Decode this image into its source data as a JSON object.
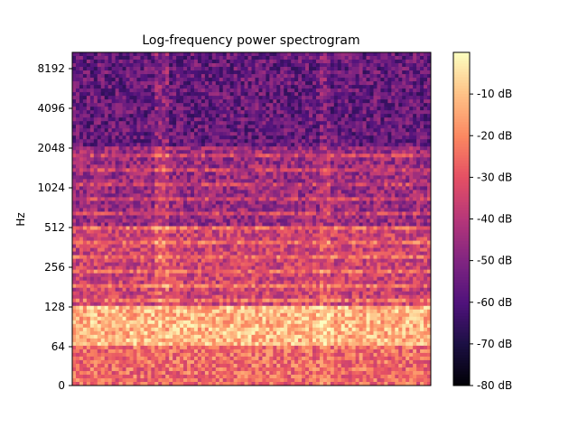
{
  "chart_data": {
    "type": "heatmap",
    "title": "Log-frequency power spectrogram",
    "ylabel": "Hz",
    "xlabel": "",
    "y_scale": "log",
    "y_ticks": [
      "0",
      "64",
      "128",
      "256",
      "512",
      "1024",
      "2048",
      "4096",
      "8192"
    ],
    "colorbar": {
      "label_suffix": " dB",
      "ticks": [
        "-10 dB",
        "-20 dB",
        "-30 dB",
        "-40 dB",
        "-50 dB",
        "-60 dB",
        "-70 dB",
        "-80 dB"
      ],
      "range": [
        -80,
        0
      ],
      "colormap": "magma"
    },
    "description_levels_db": {
      "low_band_0_64": -25,
      "band_64_128": -12,
      "band_128_512": -35,
      "band_512_2048": -45,
      "band_2048_11000": -55
    },
    "grid": false,
    "legend": "none"
  }
}
